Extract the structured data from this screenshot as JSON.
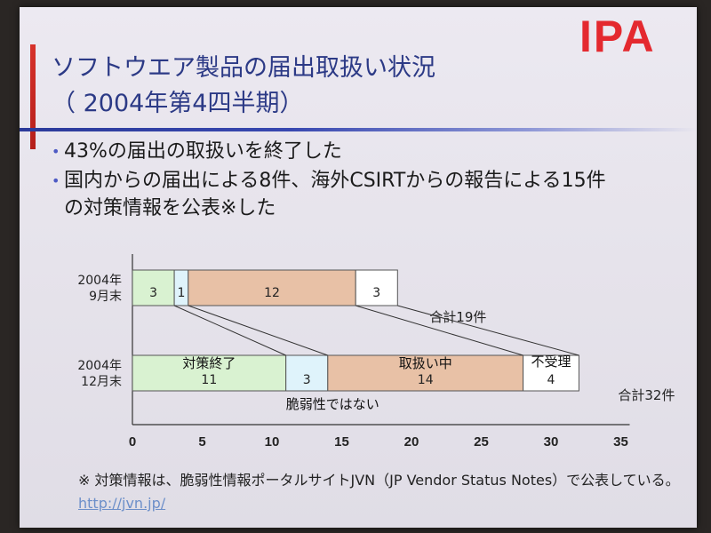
{
  "slide": {
    "logo": "IPA",
    "title_line1": "ソフトウエア製品の届出取扱い状況",
    "title_line2": "（ 2004年第4四半期）",
    "bullets": [
      "43%の届出の取扱いを終了した",
      "国内からの届出による8件、海外CSIRTからの報告による15件の対策情報を公表※した"
    ],
    "footnote": "※ 対策情報は、脆弱性情報ポータルサイトJVN（JP Vendor Status Notes）で公表している。",
    "footnote_link": "http://jvn.jp/"
  },
  "colors": {
    "seg_done": "#d9f2d1",
    "seg_nonvuln": "#dff3fb",
    "seg_processing": "#e8c1a6",
    "seg_rejected": "#ffffff",
    "title": "#2c3a86",
    "logo": "#e4292f"
  },
  "chart_data": {
    "type": "bar",
    "orientation": "horizontal",
    "stacked": true,
    "categories": [
      {
        "label_line1": "2004年",
        "label_line2": "9月末",
        "total_label": "合計19件"
      },
      {
        "label_line1": "2004年",
        "label_line2": "12月末",
        "total_label": "合計32件"
      }
    ],
    "series": [
      {
        "name": "対策終了",
        "values": [
          3,
          11
        ],
        "color": "#d9f2d1"
      },
      {
        "name": "脆弱性ではない",
        "values": [
          1,
          3
        ],
        "color": "#dff3fb"
      },
      {
        "name": "取扱い中",
        "values": [
          12,
          14
        ],
        "color": "#e8c1a6"
      },
      {
        "name": "不受理",
        "values": [
          3,
          4
        ],
        "color": "#ffffff"
      }
    ],
    "xlim": [
      0,
      35
    ],
    "xticks": [
      0,
      5,
      10,
      15,
      20,
      25,
      30,
      35
    ],
    "grid": false
  }
}
